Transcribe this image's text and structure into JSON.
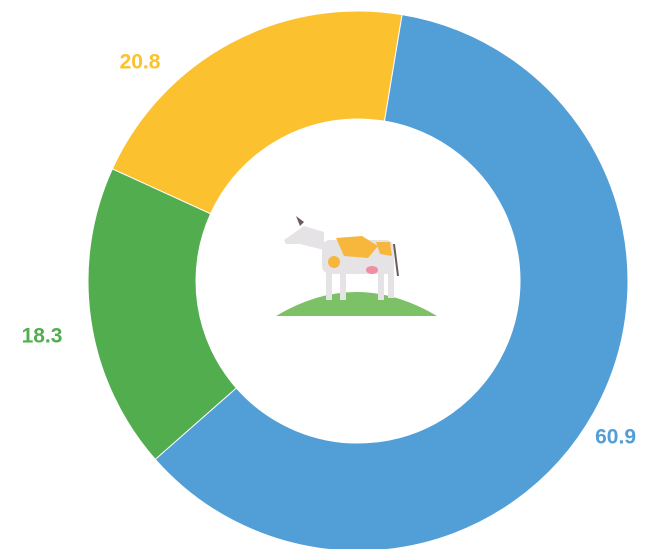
{
  "chart_data": {
    "type": "donut",
    "values": [
      60.9,
      18.3,
      20.8
    ],
    "colors": [
      "#529ed6",
      "#52ad4f",
      "#fcc12e"
    ]
  }
}
